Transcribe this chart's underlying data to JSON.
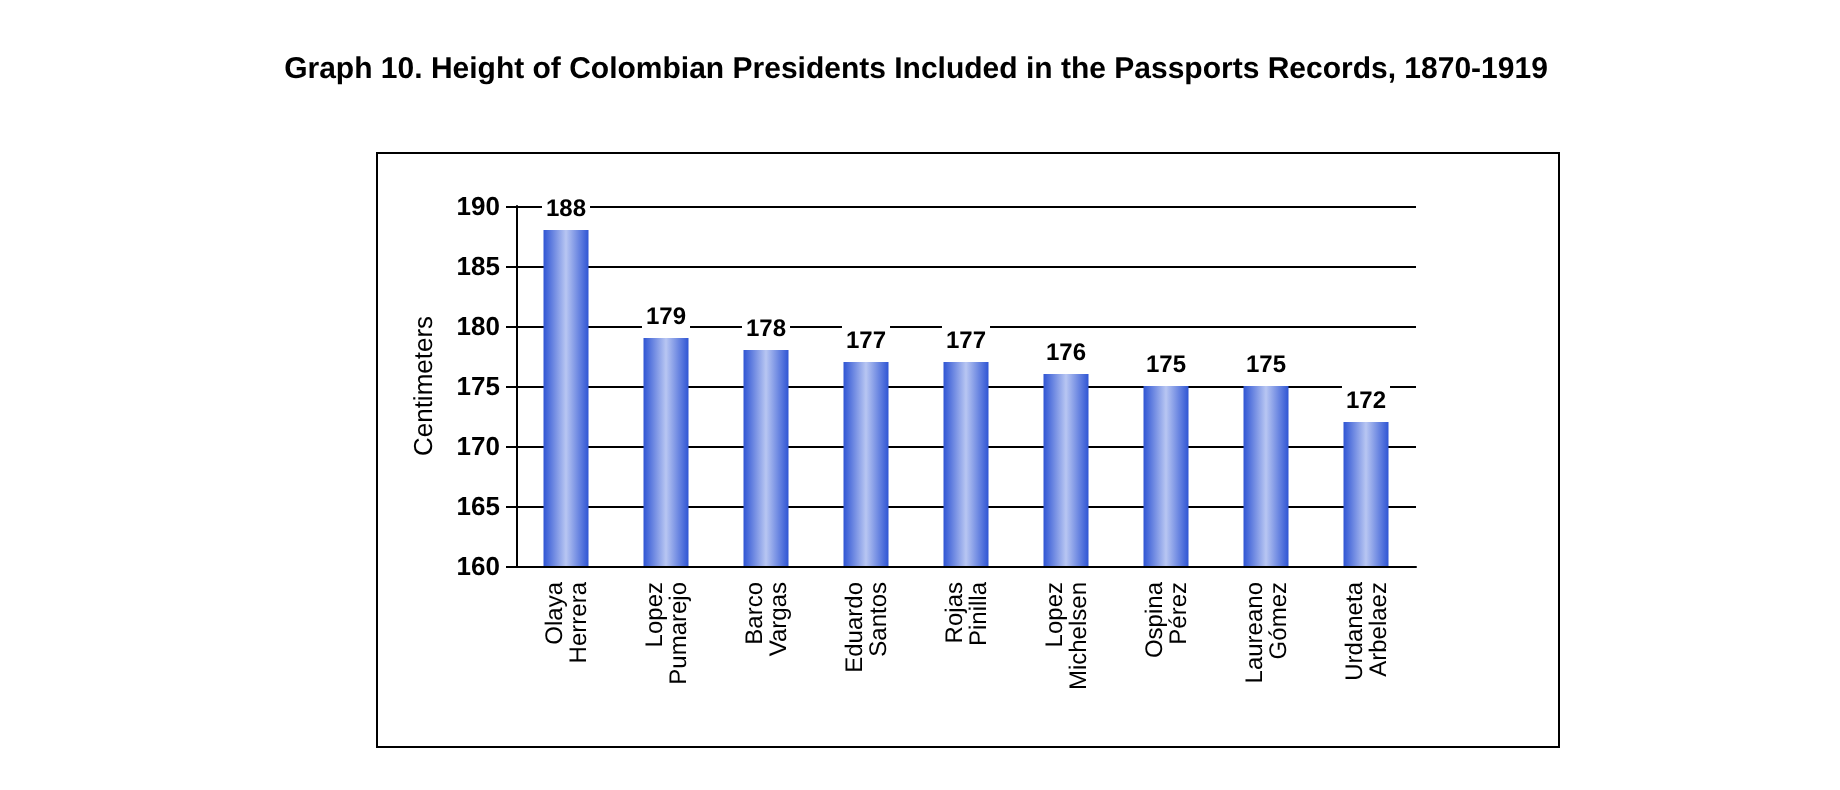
{
  "chart_data": {
    "type": "bar",
    "title": "Graph 10. Height of Colombian Presidents Included in the Passports Records, 1870-1919",
    "ylabel": "Centimeters",
    "categories": [
      "Olaya Herrera",
      "Lopez Pumarejo",
      "Barco Vargas",
      "Eduardo Santos",
      "Rojas Pinilla",
      "Lopez Michelsen",
      "Ospina Pérez",
      "Laureano Gómez",
      "Urdaneta Arbelaez"
    ],
    "values": [
      188,
      179,
      178,
      177,
      177,
      176,
      175,
      175,
      172
    ],
    "color": "#2f55d4",
    "ylim": [
      160,
      190
    ],
    "yticks": [
      160,
      165,
      170,
      175,
      180,
      185,
      190
    ],
    "grid": "y",
    "data_labels": true
  }
}
